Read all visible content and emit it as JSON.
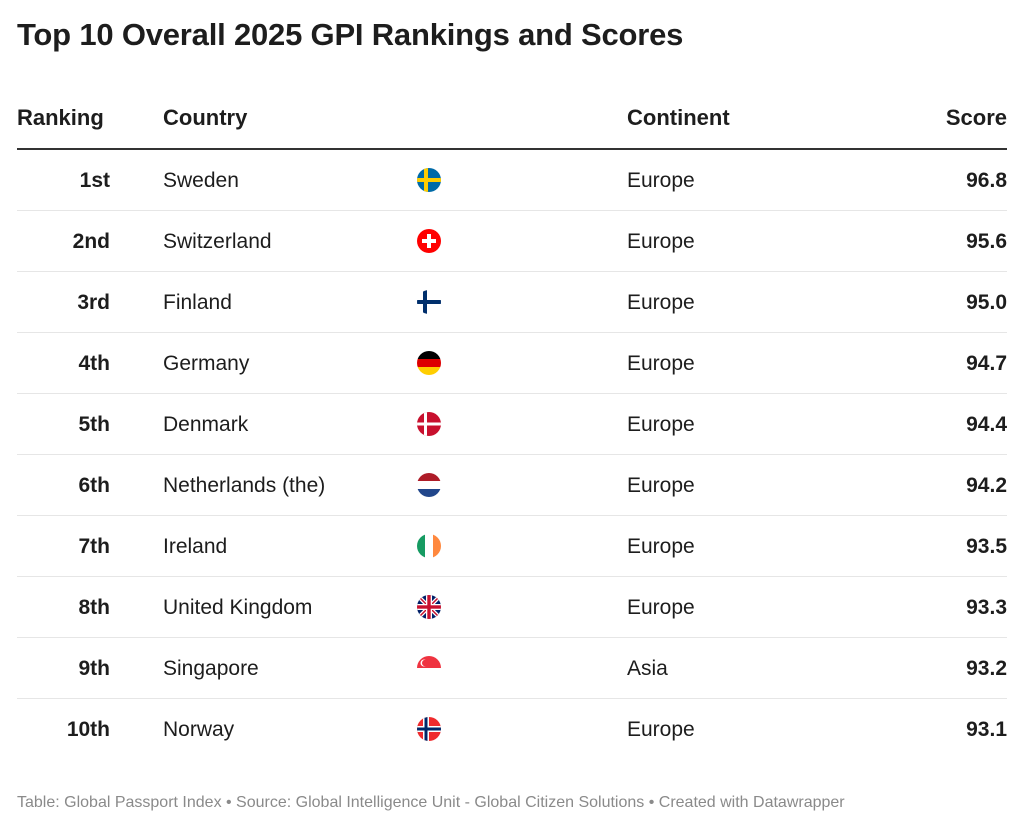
{
  "title": "Top 10 Overall 2025 GPI Rankings and Scores",
  "chart_data": {
    "type": "table",
    "title": "Top 10 Overall 2025 GPI Rankings and Scores",
    "columns": [
      "Ranking",
      "Country",
      "Continent",
      "Score"
    ],
    "rows": [
      {
        "rank": "1st",
        "country": "Sweden",
        "flag": "se",
        "continent": "Europe",
        "score": "96.8"
      },
      {
        "rank": "2nd",
        "country": "Switzerland",
        "flag": "ch",
        "continent": "Europe",
        "score": "95.6"
      },
      {
        "rank": "3rd",
        "country": "Finland",
        "flag": "fi",
        "continent": "Europe",
        "score": "95.0"
      },
      {
        "rank": "4th",
        "country": "Germany",
        "flag": "de",
        "continent": "Europe",
        "score": "94.7"
      },
      {
        "rank": "5th",
        "country": "Denmark",
        "flag": "dk",
        "continent": "Europe",
        "score": "94.4"
      },
      {
        "rank": "6th",
        "country": "Netherlands (the)",
        "flag": "nl",
        "continent": "Europe",
        "score": "94.2"
      },
      {
        "rank": "7th",
        "country": "Ireland",
        "flag": "ie",
        "continent": "Europe",
        "score": "93.5"
      },
      {
        "rank": "8th",
        "country": "United Kingdom",
        "flag": "gb",
        "continent": "Europe",
        "score": "93.3"
      },
      {
        "rank": "9th",
        "country": "Singapore",
        "flag": "sg",
        "continent": "Asia",
        "score": "93.2"
      },
      {
        "rank": "10th",
        "country": "Norway",
        "flag": "no",
        "continent": "Europe",
        "score": "93.1"
      }
    ]
  },
  "footer": "Table: Global Passport Index • Source: Global Intelligence Unit - Global Citizen Solutions  • Created with Datawrapper"
}
